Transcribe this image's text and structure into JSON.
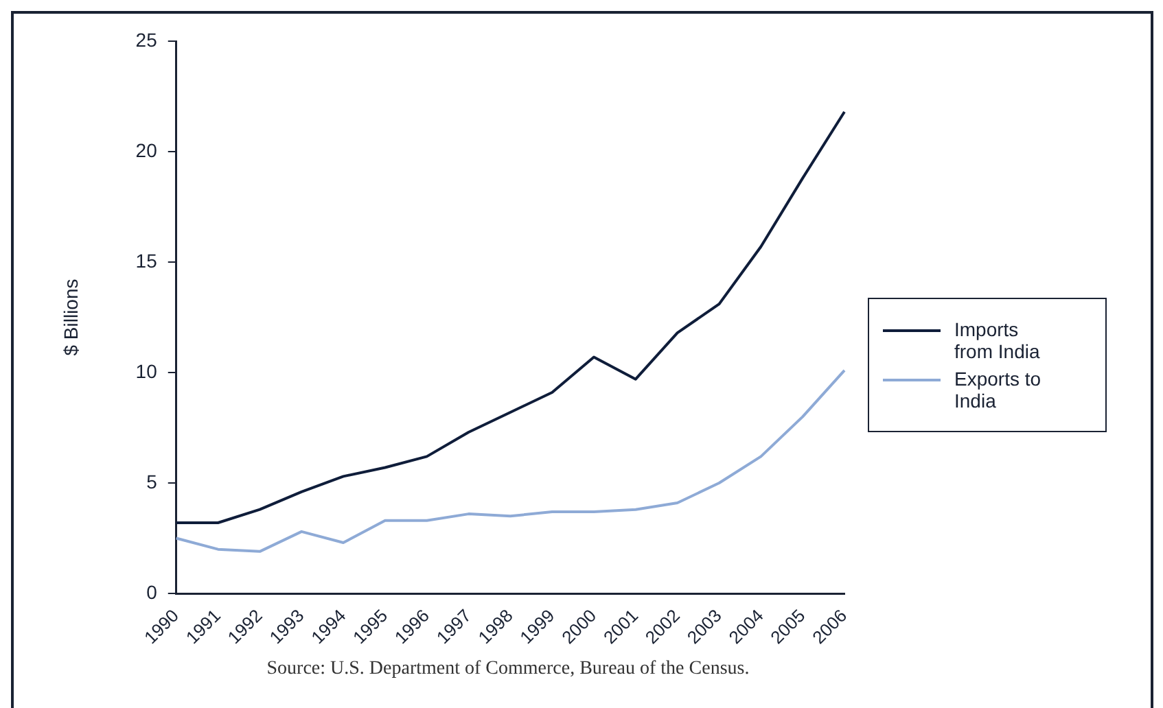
{
  "chart_data": {
    "type": "line",
    "ylabel": "$ Billions",
    "categories": [
      "1990",
      "1991",
      "1992",
      "1993",
      "1994",
      "1995",
      "1996",
      "1997",
      "1998",
      "1999",
      "2000",
      "2001",
      "2002",
      "2003",
      "2004",
      "2005",
      "2006"
    ],
    "series": [
      {
        "name": "Imports from India",
        "color": "#0f1d3a",
        "values": [
          3.2,
          3.2,
          3.8,
          4.6,
          5.3,
          5.7,
          6.2,
          7.3,
          8.2,
          9.1,
          10.7,
          9.7,
          11.8,
          13.1,
          15.7,
          18.8,
          21.8
        ]
      },
      {
        "name": "Exports to India",
        "color": "#8eaad6",
        "values": [
          2.5,
          2.0,
          1.9,
          2.8,
          2.3,
          3.3,
          3.3,
          3.6,
          3.5,
          3.7,
          3.7,
          3.8,
          4.1,
          5.0,
          6.2,
          8.0,
          10.1
        ]
      }
    ],
    "ylim": [
      0,
      25
    ],
    "yticks": [
      0,
      5,
      10,
      15,
      20,
      25
    ],
    "grid": false,
    "legend": "right",
    "marker": "none",
    "line_style": "solid",
    "annotations": [
      "Source: U.S. Department of Commerce, Bureau of the Census."
    ]
  }
}
